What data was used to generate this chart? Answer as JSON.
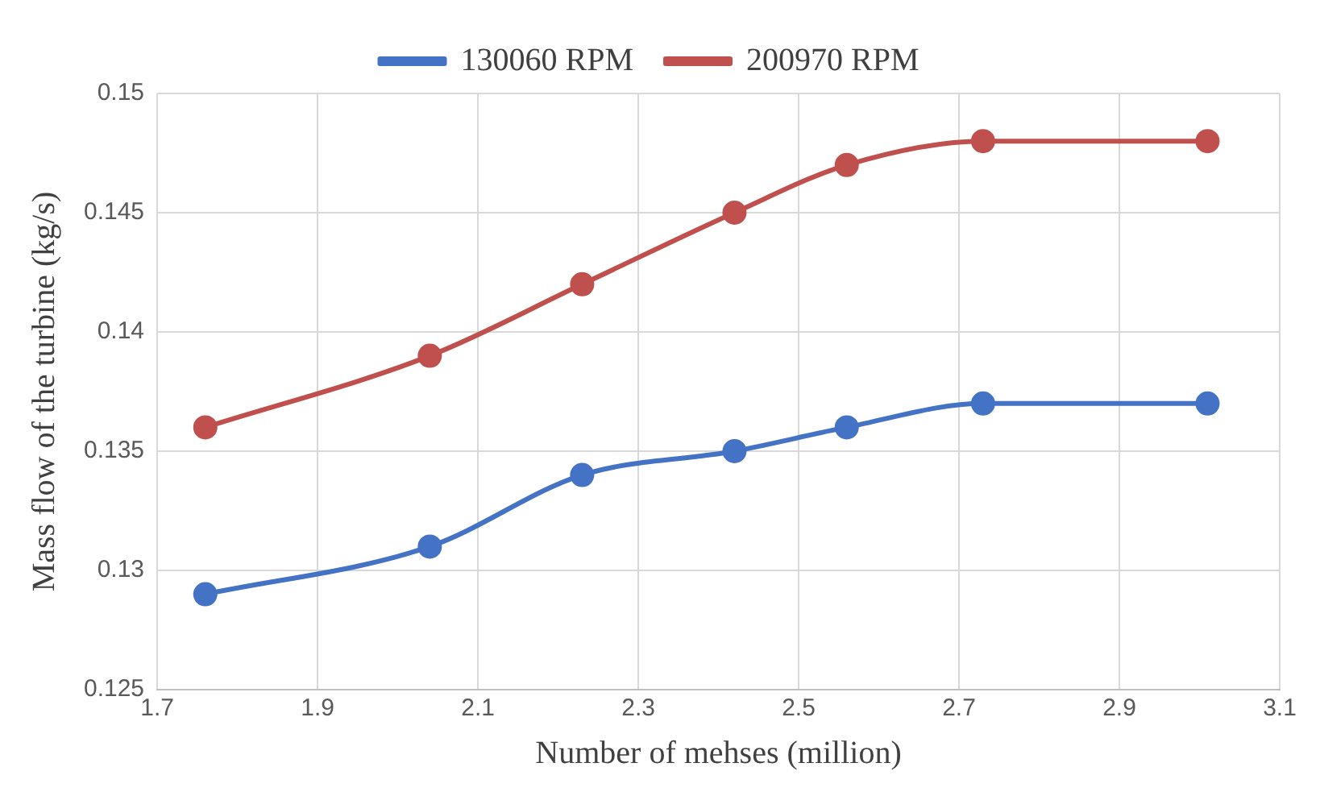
{
  "chart_data": {
    "type": "line",
    "xlabel": "Number of mehses (million)",
    "ylabel": "Mass flow of the turbine (kg/s)",
    "x": [
      1.76,
      2.04,
      2.23,
      2.42,
      2.56,
      2.73,
      3.01
    ],
    "series": [
      {
        "name": "130060 RPM",
        "color": "#4472c4",
        "values": [
          0.129,
          0.131,
          0.134,
          0.135,
          0.136,
          0.137,
          0.137
        ]
      },
      {
        "name": "200970 RPM",
        "color": "#c0504d",
        "values": [
          0.136,
          0.139,
          0.142,
          0.145,
          0.147,
          0.148,
          0.148
        ]
      }
    ],
    "xlim": [
      1.7,
      3.1
    ],
    "xticks": [
      1.7,
      1.9,
      2.1,
      2.3,
      2.5,
      2.7,
      2.9,
      3.1
    ],
    "ylim": [
      0.125,
      0.15
    ],
    "yticks": [
      0.125,
      0.13,
      0.135,
      0.14,
      0.145,
      0.15
    ],
    "grid": true,
    "legend": "top",
    "marker": "circle",
    "line_style": "solid"
  }
}
